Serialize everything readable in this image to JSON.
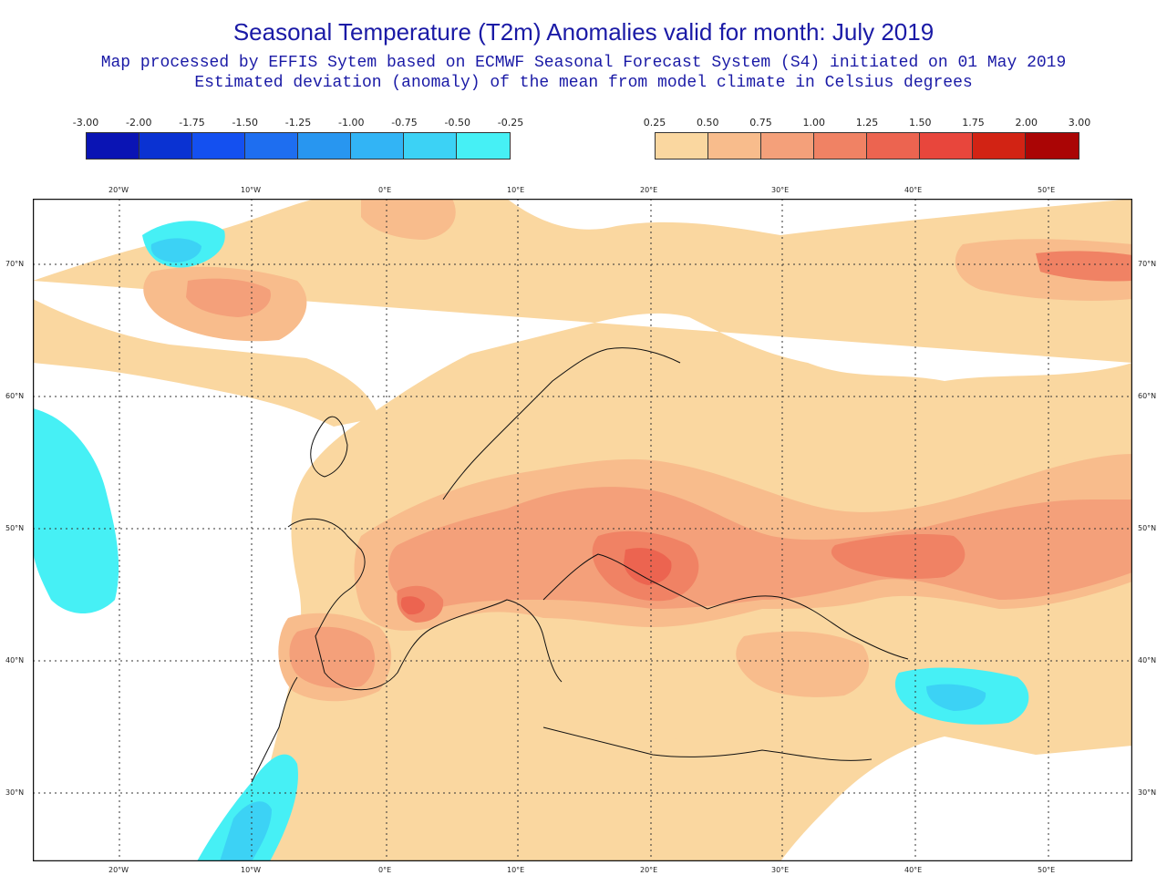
{
  "title": "Seasonal Temperature (T2m) Anomalies valid for month: July 2019",
  "subtitle_1": "Map processed by EFFIS Sytem based on ECMWF Seasonal Forecast System (S4) initiated on 01 May 2019",
  "subtitle_2": "Estimated deviation (anomaly) of the mean from model climate in Celsius degrees",
  "legend_negative": {
    "labels": [
      "-3.00",
      "-2.00",
      "-1.75",
      "-1.50",
      "-1.25",
      "-1.00",
      "-0.75",
      "-0.50",
      "-0.25"
    ],
    "colors": [
      "#0a14b4",
      "#0a32d2",
      "#1450f0",
      "#1e6ef0",
      "#2896f0",
      "#32b4f5",
      "#3cd2f5",
      "#46f0f5"
    ]
  },
  "legend_positive": {
    "labels": [
      "0.25",
      "0.50",
      "0.75",
      "1.00",
      "1.25",
      "1.50",
      "1.75",
      "2.00",
      "3.00"
    ],
    "colors": [
      "#fad7a0",
      "#f8bc8c",
      "#f4a07a",
      "#f08264",
      "#ec6450",
      "#e8463c",
      "#d22314",
      "#aa0505"
    ]
  },
  "axes": {
    "longitude_ticks": [
      "20°W",
      "10°W",
      "0°E",
      "10°E",
      "20°E",
      "30°E",
      "40°E",
      "50°E"
    ],
    "latitude_ticks": [
      "70°N",
      "60°N",
      "50°N",
      "40°N",
      "30°N"
    ]
  },
  "colors": {
    "text": "#1a1aa6",
    "map_background": "#ffffff",
    "coastline": "#111111",
    "grid": "#333333"
  }
}
